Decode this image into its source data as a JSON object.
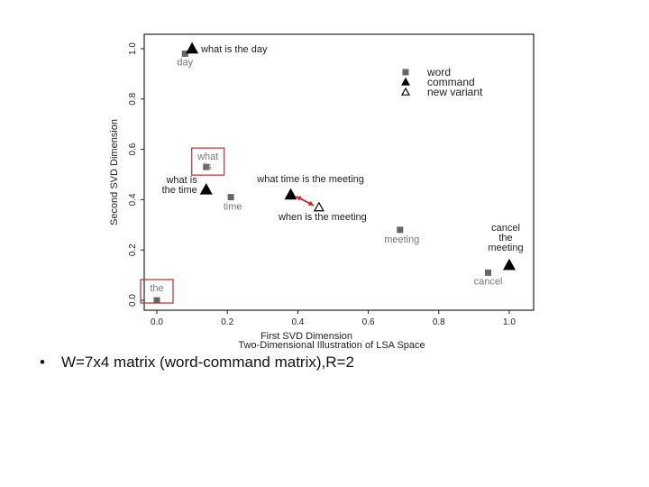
{
  "chart_data": {
    "type": "scatter",
    "title": "Two-Dimensional Illustration of LSA Space",
    "xlabel": "First SVD Dimension",
    "ylabel": "Second SVD Dimension",
    "xlim": [
      -0.03,
      1.07
    ],
    "ylim": [
      -0.04,
      1.05
    ],
    "xticks": [
      "0.0",
      "0.2",
      "0.4",
      "0.6",
      "0.8",
      "1.0"
    ],
    "yticks": [
      "0.0",
      "0.2",
      "0.4",
      "0.6",
      "0.8",
      "1.0"
    ],
    "legend_position": "top-right",
    "legend": [
      "word",
      "command",
      "new variant"
    ],
    "words": [
      {
        "label": "day",
        "x": 0.08,
        "y": 0.98
      },
      {
        "label": "what\nis",
        "x": 0.14,
        "y": 0.53
      },
      {
        "label": "time",
        "x": 0.21,
        "y": 0.41
      },
      {
        "label": "meeting",
        "x": 0.69,
        "y": 0.28
      },
      {
        "label": "cancel",
        "x": 0.94,
        "y": 0.11
      },
      {
        "label": "the",
        "x": 0.0,
        "y": 0.0
      }
    ],
    "commands": [
      {
        "label": "what is the day",
        "x": 0.1,
        "y": 1.0
      },
      {
        "label": "what is\nthe time",
        "x": 0.14,
        "y": 0.44
      },
      {
        "label": "what time is the meeting",
        "x": 0.38,
        "y": 0.42
      },
      {
        "label": "cancel\nthe\nmeeting",
        "x": 1.0,
        "y": 0.14
      }
    ],
    "new_variants": [
      {
        "label": "when is the meeting",
        "x": 0.46,
        "y": 0.37
      }
    ],
    "arrow": {
      "from": [
        0.38,
        0.42
      ],
      "to": [
        0.46,
        0.37
      ],
      "color": "#cc2222"
    },
    "highlighted_words": [
      "what\nis",
      "the"
    ],
    "grid": false
  },
  "bullet": {
    "symbol": "•",
    "text": "W=7x4 matrix (word-command matrix),R=2"
  }
}
